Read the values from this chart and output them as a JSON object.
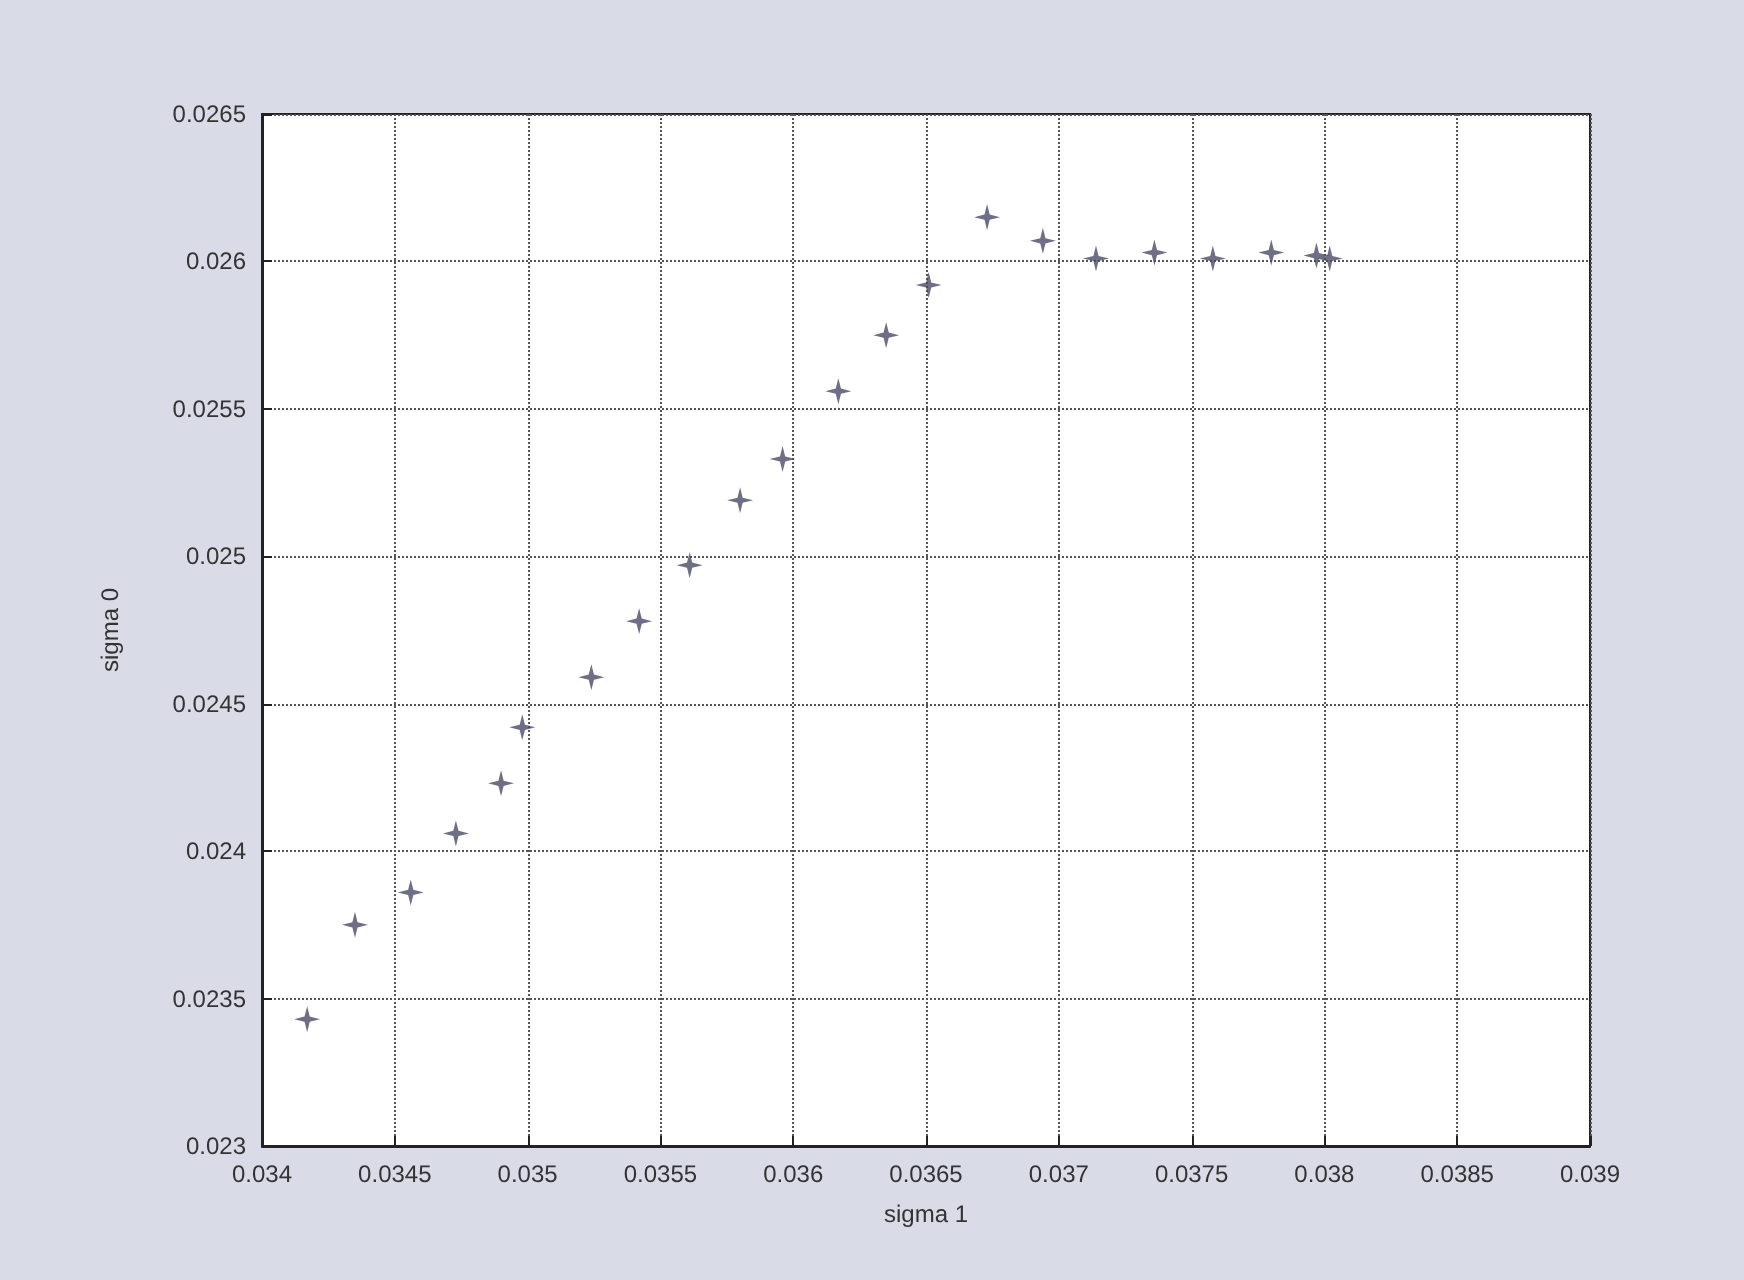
{
  "chart_data": {
    "type": "scatter",
    "xlabel": "sigma 1",
    "ylabel": "sigma 0",
    "x": [
      0.03417,
      0.03435,
      0.03456,
      0.03473,
      0.0349,
      0.03498,
      0.03524,
      0.03542,
      0.03561,
      0.0358,
      0.03596,
      0.03617,
      0.03635,
      0.03651,
      0.03673,
      0.03694,
      0.03714,
      0.03736,
      0.03758,
      0.0378,
      0.03797,
      0.03802
    ],
    "series": [
      {
        "color": "#4a4a66",
        "values": [
          0.02343,
          0.02375,
          0.02386,
          0.02406,
          0.02423,
          0.02442,
          0.02459,
          0.02478,
          0.02497,
          0.02519,
          0.02533,
          0.02556,
          0.02575,
          0.02592,
          0.02615,
          0.02607,
          0.02601,
          0.02603,
          0.02601,
          0.02603,
          0.02602,
          0.02601
        ]
      }
    ],
    "xlim": [
      0.034,
      0.039
    ],
    "xticks": [
      0.034,
      0.0345,
      0.035,
      0.0355,
      0.036,
      0.0365,
      0.037,
      0.0375,
      0.038,
      0.0385,
      0.039
    ],
    "ylim": [
      0.023,
      0.0265
    ],
    "yticks": [
      0.023,
      0.0235,
      0.024,
      0.0245,
      0.025,
      0.0255,
      0.026,
      0.0265
    ],
    "grid": true,
    "marker": "star"
  }
}
